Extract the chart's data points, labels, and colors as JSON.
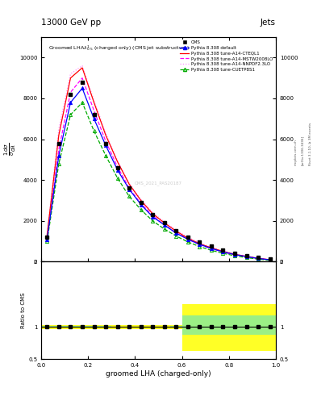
{
  "title_top": "13000 GeV pp",
  "title_right": "Jets",
  "plot_title": "Groomed LHA$\\lambda^{1}_{0.5}$ (charged only) (CMS jet substructure)",
  "xlabel": "groomed LHA (charged-only)",
  "ylabel_ratio": "Ratio to CMS",
  "watermark": "CMS_2021_PAS20187",
  "rivet_label": "Rivet 3.1.10, ≥ 3M events",
  "arxiv_label": "[arXiv:1306.3436]",
  "mcplots_label": "mcplots.cern.ch",
  "x_bins": [
    0.0,
    0.05,
    0.1,
    0.15,
    0.2,
    0.25,
    0.3,
    0.35,
    0.4,
    0.45,
    0.5,
    0.55,
    0.6,
    0.65,
    0.7,
    0.75,
    0.8,
    0.85,
    0.9,
    0.95,
    1.0
  ],
  "cms_x": [
    0.025,
    0.075,
    0.125,
    0.175,
    0.225,
    0.275,
    0.325,
    0.375,
    0.425,
    0.475,
    0.525,
    0.575,
    0.625,
    0.675,
    0.725,
    0.775,
    0.825,
    0.875,
    0.925,
    0.975
  ],
  "cms_y": [
    1200,
    5800,
    8200,
    8800,
    7200,
    5800,
    4600,
    3600,
    2900,
    2300,
    1900,
    1500,
    1200,
    950,
    750,
    580,
    420,
    300,
    200,
    120
  ],
  "pythia_default_y": [
    1100,
    5200,
    7800,
    8500,
    7000,
    5700,
    4500,
    3550,
    2800,
    2200,
    1800,
    1400,
    1100,
    850,
    650,
    480,
    350,
    250,
    160,
    90
  ],
  "pythia_cteql1_y": [
    1300,
    6200,
    9000,
    9500,
    7800,
    6200,
    4900,
    3800,
    3000,
    2350,
    1900,
    1500,
    1150,
    880,
    680,
    500,
    360,
    260,
    165,
    95
  ],
  "pythia_mstw_y": [
    1100,
    5500,
    8300,
    9000,
    7400,
    5900,
    4650,
    3600,
    2850,
    2250,
    1800,
    1420,
    1100,
    840,
    640,
    475,
    340,
    240,
    155,
    88
  ],
  "pythia_nnpdf_y": [
    1350,
    6500,
    9200,
    9600,
    7900,
    6300,
    4950,
    3850,
    3050,
    2400,
    1950,
    1550,
    1200,
    920,
    710,
    530,
    385,
    275,
    175,
    100
  ],
  "pythia_cuetp_y": [
    1000,
    4800,
    7200,
    7800,
    6400,
    5200,
    4100,
    3200,
    2550,
    2000,
    1600,
    1260,
    970,
    740,
    560,
    410,
    290,
    200,
    125,
    70
  ],
  "color_cms": "#000000",
  "color_default": "#0000ff",
  "color_cteql1": "#ff0000",
  "color_mstw": "#ff00ff",
  "color_nnpdf": "#ff88ff",
  "color_cuetp": "#00aa00",
  "ylim": [
    0,
    11000
  ],
  "yticks": [
    0,
    2000,
    4000,
    6000,
    8000,
    10000
  ],
  "ratio_yellow_lo": [
    0.97,
    0.97,
    0.97,
    0.97,
    0.97,
    0.97,
    0.97,
    0.97,
    0.97,
    0.97,
    0.97,
    0.97,
    0.63,
    0.63,
    0.63,
    0.63,
    0.63,
    0.63,
    0.63,
    0.63
  ],
  "ratio_yellow_hi": [
    1.03,
    1.03,
    1.03,
    1.03,
    1.03,
    1.03,
    1.03,
    1.03,
    1.03,
    1.03,
    1.03,
    1.03,
    1.35,
    1.35,
    1.35,
    1.35,
    1.35,
    1.35,
    1.35,
    1.35
  ],
  "ratio_green_lo": [
    0.99,
    0.99,
    0.99,
    0.99,
    0.99,
    0.99,
    0.995,
    0.995,
    0.995,
    0.995,
    0.995,
    0.99,
    0.88,
    0.88,
    0.88,
    0.88,
    0.88,
    0.88,
    0.88,
    0.88
  ],
  "ratio_green_hi": [
    1.01,
    1.01,
    1.01,
    1.01,
    1.01,
    1.01,
    1.005,
    1.005,
    1.005,
    1.005,
    1.005,
    1.01,
    1.18,
    1.18,
    1.18,
    1.18,
    1.18,
    1.18,
    1.18,
    1.18
  ]
}
